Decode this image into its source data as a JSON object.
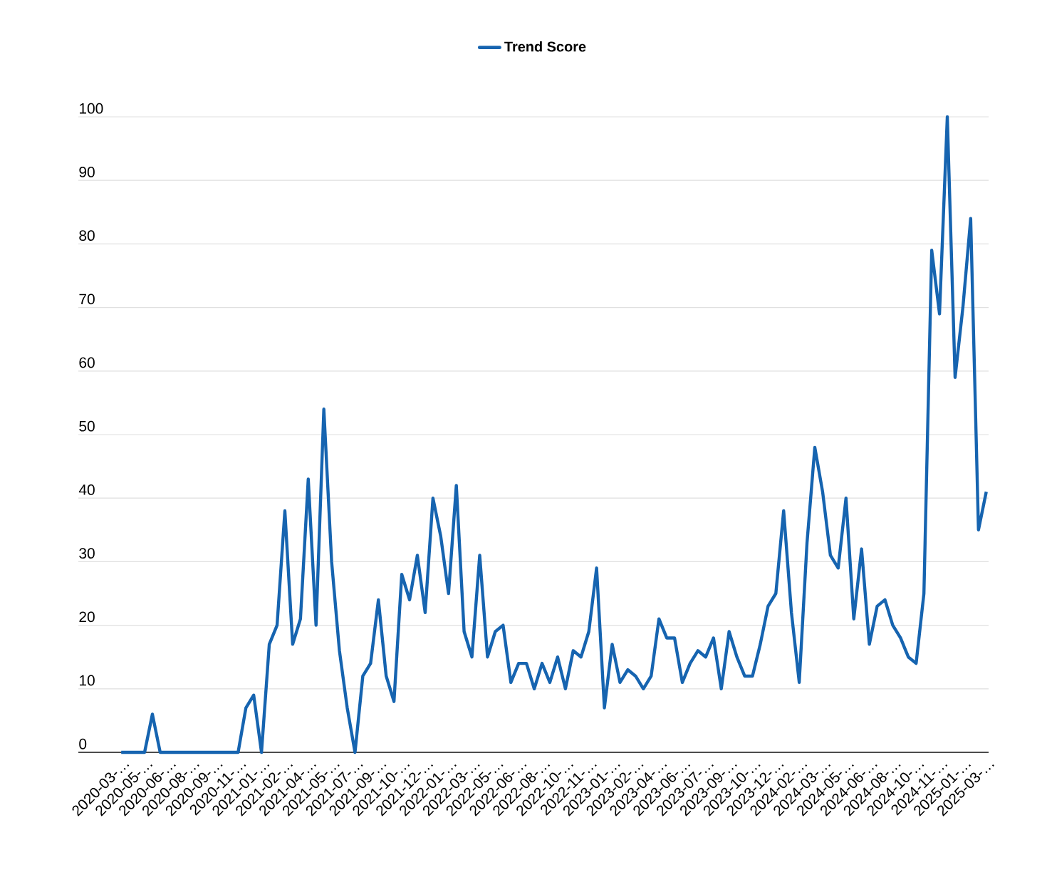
{
  "chart_data": {
    "type": "line",
    "categories": [
      "2020-03-…",
      null,
      null,
      "2020-05-…",
      null,
      null,
      "2020-06-…",
      null,
      null,
      "2020-08-…",
      null,
      null,
      "2020-09-…",
      null,
      null,
      "2020-11-…",
      null,
      null,
      "2021-01-…",
      null,
      null,
      "2021-02-…",
      null,
      null,
      "2021-04-…",
      null,
      null,
      "2021-05-…",
      null,
      null,
      "2021-07-…",
      null,
      null,
      "2021-09-…",
      null,
      null,
      "2021-10-…",
      null,
      null,
      "2021-12-…",
      null,
      null,
      "2022-01-…",
      null,
      null,
      "2022-03-…",
      null,
      null,
      "2022-05-…",
      null,
      null,
      "2022-06-…",
      null,
      null,
      "2022-08-…",
      null,
      null,
      "2022-10-…",
      null,
      null,
      "2022-11-…",
      null,
      null,
      "2023-01-…",
      null,
      null,
      "2023-02-…",
      null,
      null,
      "2023-04-…",
      null,
      null,
      "2023-06-…",
      null,
      null,
      "2023-07-…",
      null,
      null,
      "2023-09-…",
      null,
      null,
      "2023-10-…",
      null,
      null,
      "2023-12-…",
      null,
      null,
      "2024-02-…",
      null,
      null,
      "2024-03-…",
      null,
      null,
      "2024-05-…",
      null,
      null,
      "2024-06-…",
      null,
      null,
      "2024-08-…",
      null,
      null,
      "2024-10-…",
      null,
      null,
      "2024-11-…",
      null,
      null,
      "2025-01-…",
      null,
      null,
      "2025-03-…"
    ],
    "series": [
      {
        "name": "Trend Score",
        "color": "#1664b0",
        "values": [
          0,
          0,
          0,
          0,
          6,
          0,
          0,
          0,
          0,
          0,
          0,
          0,
          0,
          0,
          0,
          0,
          7,
          9,
          0,
          17,
          20,
          38,
          17,
          21,
          43,
          20,
          54,
          30,
          16,
          7,
          0,
          12,
          14,
          24,
          12,
          8,
          28,
          24,
          31,
          22,
          40,
          34,
          25,
          42,
          19,
          15,
          31,
          15,
          19,
          20,
          11,
          14,
          14,
          10,
          14,
          11,
          15,
          10,
          16,
          15,
          19,
          29,
          7,
          17,
          11,
          13,
          12,
          10,
          12,
          21,
          18,
          18,
          11,
          14,
          16,
          15,
          18,
          10,
          19,
          15,
          12,
          12,
          17,
          23,
          25,
          38,
          22,
          11,
          33,
          48,
          41,
          31,
          29,
          40,
          21,
          32,
          17,
          23,
          24,
          20,
          18,
          15,
          14,
          25,
          79,
          69,
          100,
          59,
          70,
          84,
          35,
          41
        ]
      }
    ],
    "ylim": [
      0,
      100
    ],
    "yticks": [
      0,
      10,
      20,
      30,
      40,
      50,
      60,
      70,
      80,
      90,
      100
    ],
    "grid": "y",
    "legend": "top"
  }
}
